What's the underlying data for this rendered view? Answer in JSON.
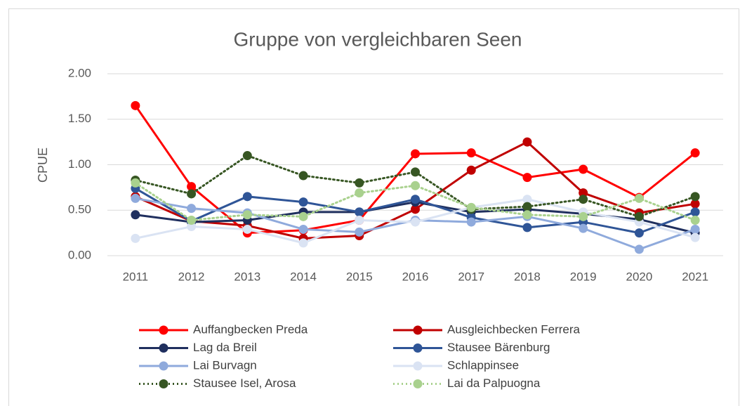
{
  "chart_data": {
    "type": "line",
    "title": "Gruppe von vergleichbaren Seen",
    "y_label": "CPUE",
    "categories": [
      "2011",
      "2012",
      "2013",
      "2014",
      "2015",
      "2016",
      "2017",
      "2018",
      "2019",
      "2020",
      "2021"
    ],
    "ylim": [
      0,
      2
    ],
    "yticks": [
      {
        "value": 0,
        "label": "0.00"
      },
      {
        "value": 0.5,
        "label": "0.50"
      },
      {
        "value": 1,
        "label": "1.00"
      },
      {
        "value": 1.5,
        "label": "1.50"
      },
      {
        "value": 2,
        "label": "2.00"
      }
    ],
    "grid": true,
    "legend": "bottom",
    "series": [
      {
        "name": "Auffangbecken Preda",
        "color": "#ff0000",
        "style": "solid",
        "values": [
          1.65,
          0.76,
          0.25,
          0.28,
          0.39,
          1.12,
          1.13,
          0.86,
          0.95,
          0.64,
          1.13
        ]
      },
      {
        "name": "Ausgleichbecken Ferrera",
        "color": "#c00000",
        "style": "solid",
        "values": [
          0.65,
          0.38,
          0.33,
          0.19,
          0.22,
          0.51,
          0.94,
          1.25,
          0.69,
          0.47,
          0.57
        ]
      },
      {
        "name": "Lag da Breil",
        "color": "#1f2f5e",
        "style": "solid",
        "values": [
          0.45,
          0.37,
          0.39,
          0.48,
          0.48,
          0.59,
          0.48,
          0.51,
          0.46,
          0.4,
          0.25
        ]
      },
      {
        "name": "Stausee Bärenburg",
        "color": "#2f5597",
        "style": "solid",
        "values": [
          0.74,
          0.38,
          0.65,
          0.59,
          0.48,
          0.62,
          0.42,
          0.31,
          0.37,
          0.25,
          0.48
        ]
      },
      {
        "name": "Lai Burvagn",
        "color": "#8faadc",
        "style": "solid",
        "values": [
          0.63,
          0.52,
          0.47,
          0.29,
          0.26,
          0.39,
          0.37,
          0.43,
          0.3,
          0.07,
          0.29
        ]
      },
      {
        "name": "Schlappinsee",
        "color": "#dae3f3",
        "style": "solid",
        "values": [
          0.19,
          0.32,
          0.29,
          0.14,
          0.39,
          0.37,
          0.53,
          0.62,
          0.48,
          0.37,
          0.2
        ]
      },
      {
        "name": "Stausee Isel, Arosa",
        "color": "#375623",
        "style": "dotted",
        "values": [
          0.83,
          0.68,
          1.1,
          0.88,
          0.8,
          0.92,
          0.51,
          0.54,
          0.62,
          0.43,
          0.65
        ]
      },
      {
        "name": "Lai da Palpuogna",
        "color": "#a9d18e",
        "style": "dotted",
        "values": [
          0.8,
          0.39,
          0.45,
          0.43,
          0.69,
          0.77,
          0.53,
          0.45,
          0.43,
          0.63,
          0.39
        ]
      }
    ]
  }
}
